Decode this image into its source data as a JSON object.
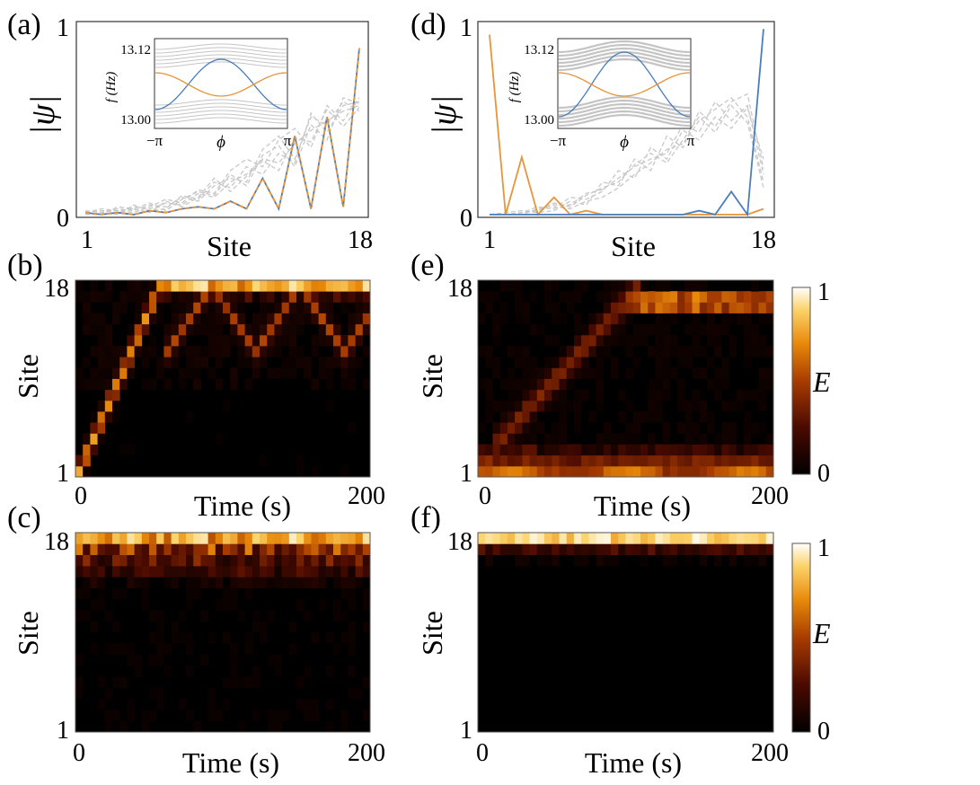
{
  "figure": {
    "labels": [
      "(a)",
      "(b)",
      "(c)",
      "(d)",
      "(e)",
      "(f)"
    ],
    "colorbar": {
      "label": "E",
      "ticks": [
        "0",
        "1"
      ]
    }
  },
  "chart_data": [
    {
      "panel": "(a)",
      "type": "line",
      "xlabel": "Site",
      "ylabel": "|ψ|",
      "xticks": [
        "1",
        "18"
      ],
      "yticks": [
        "0",
        "1"
      ],
      "xlim": [
        1,
        18
      ],
      "ylim": [
        0,
        1
      ],
      "x": [
        1,
        2,
        3,
        4,
        5,
        6,
        7,
        8,
        9,
        10,
        11,
        12,
        13,
        14,
        15,
        16,
        17,
        18
      ],
      "series": [
        {
          "name": "blue state",
          "color": "#4a7ebb",
          "values": [
            0.02,
            0.01,
            0.02,
            0.01,
            0.03,
            0.02,
            0.04,
            0.05,
            0.04,
            0.08,
            0.04,
            0.2,
            0.04,
            0.42,
            0.04,
            0.52,
            0.05,
            0.88
          ]
        },
        {
          "name": "orange state",
          "color": "#e8953a",
          "values": [
            0.02,
            0.01,
            0.02,
            0.01,
            0.03,
            0.02,
            0.04,
            0.05,
            0.04,
            0.08,
            0.04,
            0.2,
            0.04,
            0.42,
            0.04,
            0.52,
            0.05,
            0.88
          ]
        },
        {
          "name": "bulk 1",
          "color": "#c8c8c8",
          "values": [
            0.02,
            0.03,
            0.02,
            0.05,
            0.04,
            0.07,
            0.06,
            0.12,
            0.1,
            0.18,
            0.22,
            0.3,
            0.28,
            0.38,
            0.45,
            0.5,
            0.55,
            0.58
          ]
        },
        {
          "name": "bulk 2",
          "color": "#c8c8c8",
          "values": [
            0.01,
            0.02,
            0.04,
            0.03,
            0.06,
            0.05,
            0.1,
            0.08,
            0.16,
            0.2,
            0.18,
            0.35,
            0.42,
            0.3,
            0.52,
            0.48,
            0.6,
            0.55
          ]
        },
        {
          "name": "bulk 3",
          "color": "#c8c8c8",
          "values": [
            0.02,
            0.04,
            0.03,
            0.02,
            0.05,
            0.09,
            0.07,
            0.14,
            0.12,
            0.24,
            0.3,
            0.26,
            0.4,
            0.46,
            0.36,
            0.58,
            0.5,
            0.62
          ]
        },
        {
          "name": "bulk 4",
          "color": "#c8c8c8",
          "values": [
            0.03,
            0.02,
            0.01,
            0.06,
            0.03,
            0.04,
            0.11,
            0.09,
            0.18,
            0.15,
            0.26,
            0.22,
            0.33,
            0.28,
            0.54,
            0.44,
            0.58,
            0.6
          ]
        },
        {
          "name": "bulk 5",
          "color": "#c8c8c8",
          "values": [
            0.01,
            0.01,
            0.05,
            0.04,
            0.02,
            0.08,
            0.05,
            0.1,
            0.2,
            0.13,
            0.21,
            0.29,
            0.24,
            0.41,
            0.39,
            0.56,
            0.47,
            0.57
          ]
        },
        {
          "name": "bulk 6",
          "color": "#c8c8c8",
          "values": [
            0.02,
            0.03,
            0.03,
            0.04,
            0.07,
            0.03,
            0.09,
            0.13,
            0.11,
            0.22,
            0.16,
            0.32,
            0.37,
            0.26,
            0.48,
            0.4,
            0.62,
            0.59
          ]
        }
      ],
      "inset": {
        "xlabel": "ϕ",
        "ylabel": "f (Hz)",
        "xticks": [
          "−π",
          "π"
        ],
        "yticks": [
          "13.00",
          "13.12"
        ],
        "ylim": [
          13.0,
          13.12
        ]
      }
    },
    {
      "panel": "(d)",
      "type": "line",
      "xlabel": "Site",
      "ylabel": "|ψ|",
      "xticks": [
        "1",
        "18"
      ],
      "yticks": [
        "0",
        "1"
      ],
      "xlim": [
        1,
        18
      ],
      "ylim": [
        0,
        1
      ],
      "x": [
        1,
        2,
        3,
        4,
        5,
        6,
        7,
        8,
        9,
        10,
        11,
        12,
        13,
        14,
        15,
        16,
        17,
        18
      ],
      "series": [
        {
          "name": "orange state",
          "color": "#e8953a",
          "values": [
            0.95,
            0.01,
            0.31,
            0.01,
            0.1,
            0.01,
            0.03,
            0.01,
            0.01,
            0.01,
            0.01,
            0.01,
            0.01,
            0.01,
            0.01,
            0.01,
            0.01,
            0.04
          ]
        },
        {
          "name": "blue state",
          "color": "#4a7ebb",
          "values": [
            0.01,
            0.01,
            0.01,
            0.01,
            0.01,
            0.01,
            0.01,
            0.01,
            0.01,
            0.01,
            0.01,
            0.01,
            0.01,
            0.03,
            0.01,
            0.13,
            0.01,
            0.98
          ]
        },
        {
          "name": "bulk 1",
          "color": "#c8c8c8",
          "values": [
            0.01,
            0.01,
            0.02,
            0.03,
            0.05,
            0.04,
            0.08,
            0.1,
            0.15,
            0.22,
            0.28,
            0.35,
            0.38,
            0.5,
            0.56,
            0.62,
            0.52,
            0.18
          ]
        },
        {
          "name": "bulk 2",
          "color": "#c8c8c8",
          "values": [
            0.01,
            0.01,
            0.01,
            0.04,
            0.06,
            0.06,
            0.12,
            0.14,
            0.2,
            0.26,
            0.3,
            0.33,
            0.48,
            0.44,
            0.6,
            0.5,
            0.58,
            0.22
          ]
        },
        {
          "name": "bulk 3",
          "color": "#c8c8c8",
          "values": [
            0.01,
            0.02,
            0.03,
            0.02,
            0.03,
            0.08,
            0.06,
            0.18,
            0.16,
            0.3,
            0.24,
            0.42,
            0.36,
            0.55,
            0.47,
            0.6,
            0.64,
            0.25
          ]
        },
        {
          "name": "bulk 4",
          "color": "#c8c8c8",
          "values": [
            0.01,
            0.01,
            0.02,
            0.05,
            0.04,
            0.1,
            0.09,
            0.13,
            0.24,
            0.2,
            0.36,
            0.3,
            0.45,
            0.4,
            0.52,
            0.46,
            0.57,
            0.3
          ]
        },
        {
          "name": "bulk 5",
          "color": "#c8c8c8",
          "values": [
            0.01,
            0.01,
            0.02,
            0.03,
            0.07,
            0.05,
            0.11,
            0.15,
            0.18,
            0.27,
            0.33,
            0.28,
            0.4,
            0.52,
            0.44,
            0.58,
            0.49,
            0.15
          ]
        }
      ],
      "inset": {
        "xlabel": "ϕ",
        "ylabel": "f (Hz)",
        "xticks": [
          "−π",
          "π"
        ],
        "yticks": [
          "13.00",
          "13.12"
        ],
        "ylim": [
          13.0,
          13.12
        ]
      }
    },
    {
      "panel": "(b)",
      "type": "heatmap",
      "xlabel": "Time (s)",
      "ylabel": "Site",
      "xticks": [
        "0",
        "200"
      ],
      "yticks": [
        "1",
        "18"
      ],
      "xlim": [
        0,
        200
      ],
      "ylim": [
        1,
        18
      ],
      "pattern": "ballistic spread from site 1, reflection at site 18"
    },
    {
      "panel": "(e)",
      "type": "heatmap",
      "xlabel": "Time (s)",
      "ylabel": "Site",
      "xticks": [
        "0",
        "200"
      ],
      "yticks": [
        "1",
        "18"
      ],
      "xlim": [
        0,
        200
      ],
      "ylim": [
        1,
        18
      ],
      "pattern": "energy trapped at site 1 with spreading bulk"
    },
    {
      "panel": "(c)",
      "type": "heatmap",
      "xlabel": "Time (s)",
      "ylabel": "Site",
      "xticks": [
        "0",
        "200"
      ],
      "yticks": [
        "1",
        "18"
      ],
      "xlim": [
        0,
        200
      ],
      "ylim": [
        1,
        18
      ],
      "pattern": "excitation at site 18 spreading into top sites"
    },
    {
      "panel": "(f)",
      "type": "heatmap",
      "xlabel": "Time (s)",
      "ylabel": "Site",
      "xticks": [
        "0",
        "200"
      ],
      "yticks": [
        "1",
        "18"
      ],
      "xlim": [
        0,
        200
      ],
      "ylim": [
        1,
        18
      ],
      "pattern": "energy localized at site 18"
    }
  ]
}
